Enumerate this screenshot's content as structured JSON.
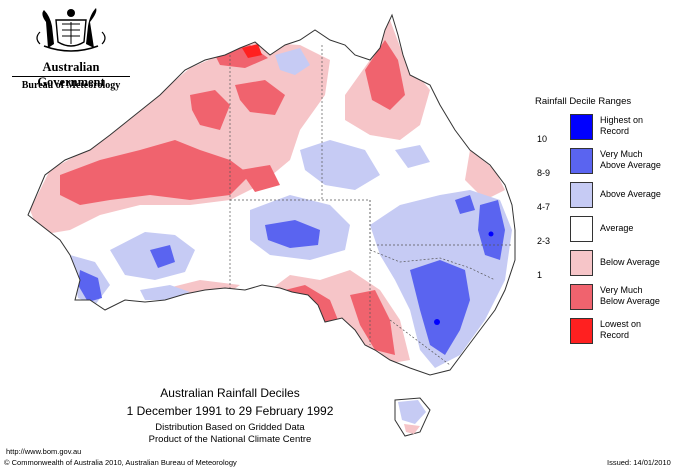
{
  "header": {
    "government": "Australian Government",
    "bureau": "Bureau of Meteorology"
  },
  "legend": {
    "title": "Rainfall Decile Ranges",
    "items": [
      {
        "label_line1": "Highest on",
        "label_line2": "Record",
        "color": "#0000ff"
      },
      {
        "label_line1": "Very Much",
        "label_line2": "Above Average",
        "color": "#5a64f0"
      },
      {
        "label_line1": "Above Average",
        "label_line2": "",
        "color": "#c6cbf4"
      },
      {
        "label_line1": "Average",
        "label_line2": "",
        "color": "#ffffff"
      },
      {
        "label_line1": "Below Average",
        "label_line2": "",
        "color": "#f6c5c8"
      },
      {
        "label_line1": "Very Much",
        "label_line2": "Below Average",
        "color": "#f0636e"
      },
      {
        "label_line1": "Lowest on",
        "label_line2": "Record",
        "color": "#ff2020"
      }
    ],
    "ranges": [
      "10",
      "8-9",
      "4-7",
      "2-3",
      "1"
    ]
  },
  "caption": {
    "title": "Australian Rainfall Deciles",
    "period": "1 December 1991 to 29 February 1992",
    "line3": "Distribution Based on Gridded Data",
    "line4": "Product of the National Climate Centre"
  },
  "footer": {
    "url": "http://www.bom.gov.au",
    "copyright": "© Commonwealth of Australia 2010, Australian Bureau of Meteorology",
    "issued": "Issued: 14/01/2010"
  },
  "colors": {
    "above": "#c6cbf4",
    "very_much_above": "#5a64f0",
    "highest": "#0000ff",
    "below": "#f6c5c8",
    "very_much_below": "#f0636e",
    "lowest": "#ff2020",
    "outline": "#333333"
  }
}
